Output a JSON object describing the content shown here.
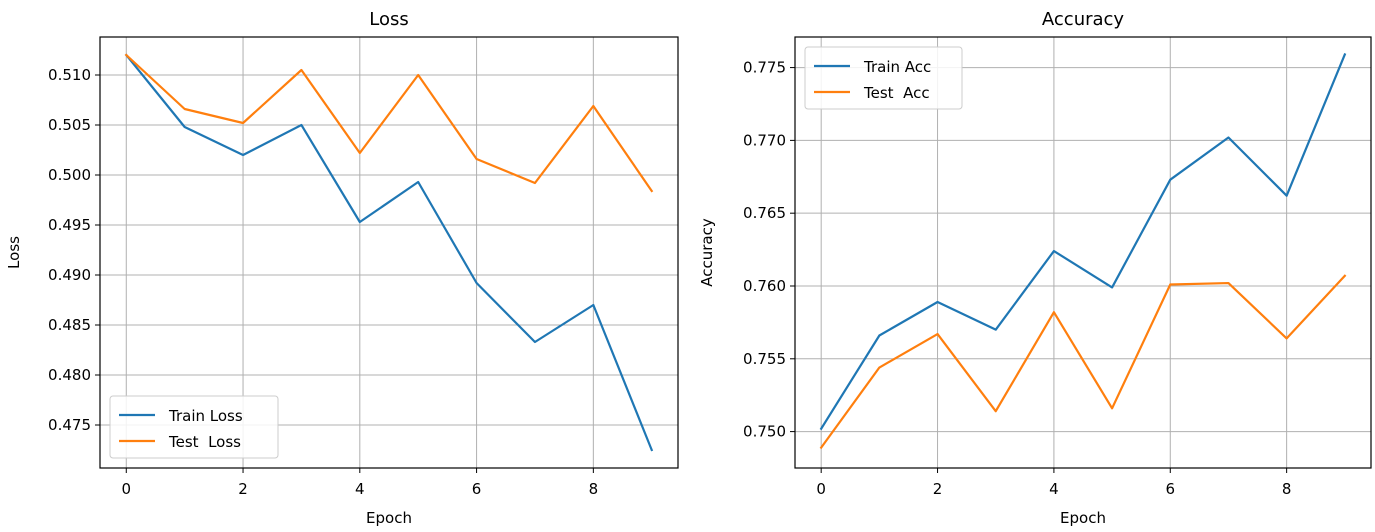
{
  "figure": {
    "background": "#ffffff"
  },
  "chart_data": [
    {
      "type": "line",
      "title": "Loss",
      "xlabel": "Epoch",
      "ylabel": "Loss",
      "x": [
        0,
        1,
        2,
        3,
        4,
        5,
        6,
        7,
        8,
        9
      ],
      "xlim": [
        -0.45,
        9.45
      ],
      "ylim": [
        0.4707,
        0.5138
      ],
      "xticks": [
        0,
        2,
        4,
        6,
        8
      ],
      "xtick_labels": [
        "0",
        "2",
        "4",
        "6",
        "8"
      ],
      "yticks": [
        0.475,
        0.48,
        0.485,
        0.49,
        0.495,
        0.5,
        0.505,
        0.51
      ],
      "ytick_labels": [
        "0.475",
        "0.480",
        "0.485",
        "0.490",
        "0.495",
        "0.500",
        "0.505",
        "0.510"
      ],
      "grid": true,
      "legend_position": "lower-left",
      "series": [
        {
          "name": "Train Loss",
          "color": "#1f77b4",
          "values": [
            0.512,
            0.5048,
            0.502,
            0.505,
            0.4953,
            0.4993,
            0.4892,
            0.4833,
            0.487,
            0.4725
          ]
        },
        {
          "name": "Test  Loss",
          "color": "#ff7f0e",
          "values": [
            0.512,
            0.5066,
            0.5052,
            0.5105,
            0.5022,
            0.51,
            0.5016,
            0.4992,
            0.5069,
            0.4984
          ]
        }
      ]
    },
    {
      "type": "line",
      "title": "Accuracy",
      "xlabel": "Epoch",
      "ylabel": "Accuracy",
      "x": [
        0,
        1,
        2,
        3,
        4,
        5,
        6,
        7,
        8,
        9
      ],
      "xlim": [
        -0.45,
        9.45
      ],
      "ylim": [
        0.7475,
        0.7771
      ],
      "xticks": [
        0,
        2,
        4,
        6,
        8
      ],
      "xtick_labels": [
        "0",
        "2",
        "4",
        "6",
        "8"
      ],
      "yticks": [
        0.75,
        0.755,
        0.76,
        0.765,
        0.77,
        0.775
      ],
      "ytick_labels": [
        "0.750",
        "0.755",
        "0.760",
        "0.765",
        "0.770",
        "0.775"
      ],
      "grid": true,
      "legend_position": "upper-left",
      "series": [
        {
          "name": "Train Acc",
          "color": "#1f77b4",
          "values": [
            0.7502,
            0.7566,
            0.7589,
            0.757,
            0.7624,
            0.7599,
            0.7673,
            0.7702,
            0.7662,
            0.7759
          ]
        },
        {
          "name": "Test  Acc",
          "color": "#ff7f0e",
          "values": [
            0.7489,
            0.7544,
            0.7567,
            0.7514,
            0.7582,
            0.7516,
            0.7601,
            0.7602,
            0.7564,
            0.7607
          ]
        }
      ]
    }
  ]
}
